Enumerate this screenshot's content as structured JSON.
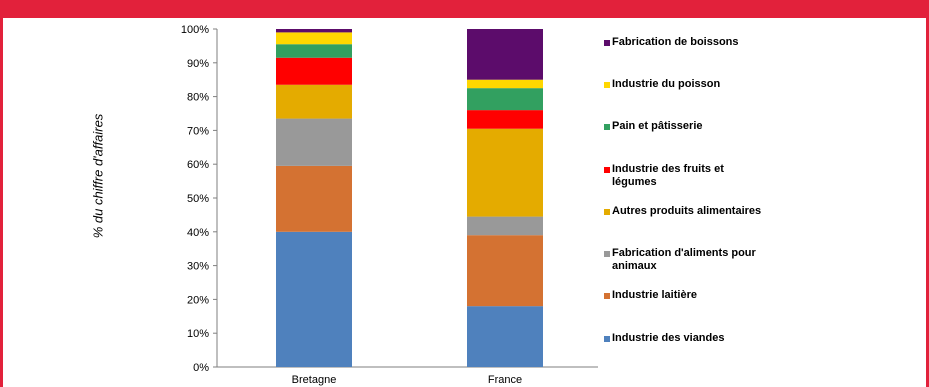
{
  "chart_data": {
    "type": "bar",
    "stacked": true,
    "ylabel": "% du chiffre d'affaires",
    "xlabel": "",
    "ylim": [
      0,
      100
    ],
    "yticks": [
      "0%",
      "10%",
      "20%",
      "30%",
      "40%",
      "50%",
      "60%",
      "70%",
      "80%",
      "90%",
      "100%"
    ],
    "categories": [
      "Bretagne",
      "France"
    ],
    "series": [
      {
        "name": "Industrie des viandes",
        "color": "#4f81bd",
        "values": [
          40,
          18
        ]
      },
      {
        "name": "Industrie laitière",
        "color": "#d47232",
        "values": [
          19.5,
          21
        ]
      },
      {
        "name": "Fabrication d'aliments pour animaux",
        "color": "#999999",
        "values": [
          14,
          5.5
        ]
      },
      {
        "name": "Autres produits alimentaires",
        "color": "#e4ab00",
        "values": [
          10,
          26
        ]
      },
      {
        "name": "Industrie des fruits et légumes",
        "color": "#ff0000",
        "values": [
          8,
          5.5
        ]
      },
      {
        "name": "Pain et pâtisserie",
        "color": "#32a060",
        "values": [
          4,
          6.5
        ]
      },
      {
        "name": "Industrie du poisson",
        "color": "#ffd700",
        "values": [
          3.5,
          2.5
        ]
      },
      {
        "name": "Fabrication de boissons",
        "color": "#5c0c6b",
        "values": [
          1,
          15
        ]
      }
    ],
    "legend_position": "right",
    "grid": false
  }
}
